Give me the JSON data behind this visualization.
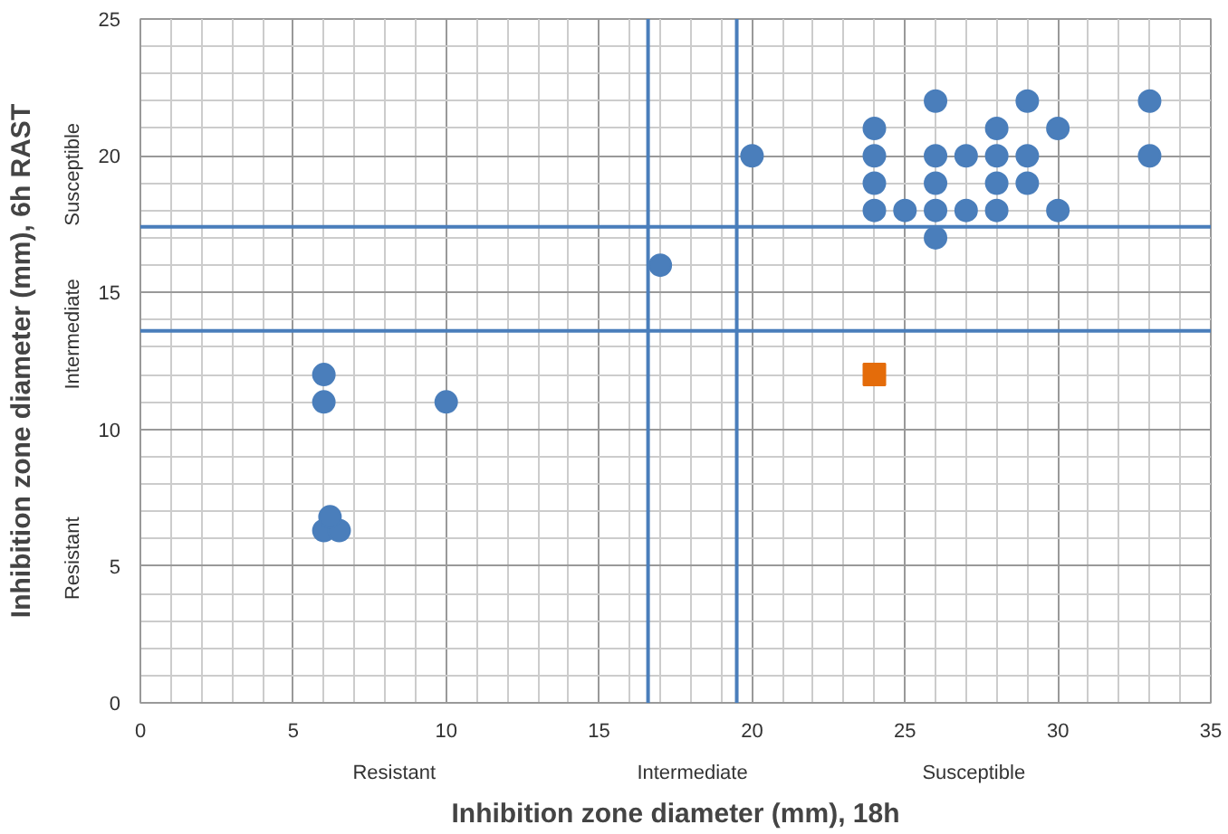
{
  "chart_data": {
    "type": "scatter",
    "xlabel": "Inhibition zone diameter (mm), 18h",
    "ylabel": "Inhibition zone diameter (mm), 6h RAST",
    "annotations": [
      "Resistant",
      "Intermediate",
      "Susceptible",
      "Resistant",
      "Intermediate",
      "Susceptible"
    ],
    "xlim": [
      0,
      35
    ],
    "ylim": [
      0,
      25
    ],
    "xticks": [
      0,
      5,
      10,
      15,
      20,
      25,
      30,
      35
    ],
    "yticks": [
      0,
      5,
      10,
      15,
      20,
      25
    ],
    "grid": true,
    "series": [
      {
        "color": "#4a7ebb",
        "marker": "circle",
        "x": [
          26,
          29,
          33,
          24,
          28,
          30,
          24,
          26,
          27,
          28,
          29,
          33,
          24,
          26,
          28,
          29,
          24,
          25,
          26,
          27,
          28,
          30,
          26,
          20,
          17,
          6,
          6,
          10,
          6,
          6.5,
          6.2
        ],
        "values": [
          22,
          22,
          22,
          21,
          21,
          21,
          20,
          20,
          20,
          20,
          20,
          20,
          19,
          19,
          19,
          19,
          18,
          18,
          18,
          18,
          18,
          18,
          17,
          20,
          16,
          12,
          11,
          11,
          6.3,
          6.3,
          6.8
        ]
      },
      {
        "color": "#e46c0a",
        "marker": "square",
        "x": [
          24
        ],
        "values": [
          12
        ]
      }
    ],
    "ref_lines": [
      {
        "axis": "x",
        "value": 16.6,
        "color": "#4a7ebb"
      },
      {
        "axis": "x",
        "value": 19.5,
        "color": "#4a7ebb"
      },
      {
        "axis": "y",
        "value": 13.6,
        "color": "#4a7ebb"
      },
      {
        "axis": "y",
        "value": 17.4,
        "color": "#4a7ebb"
      }
    ]
  }
}
